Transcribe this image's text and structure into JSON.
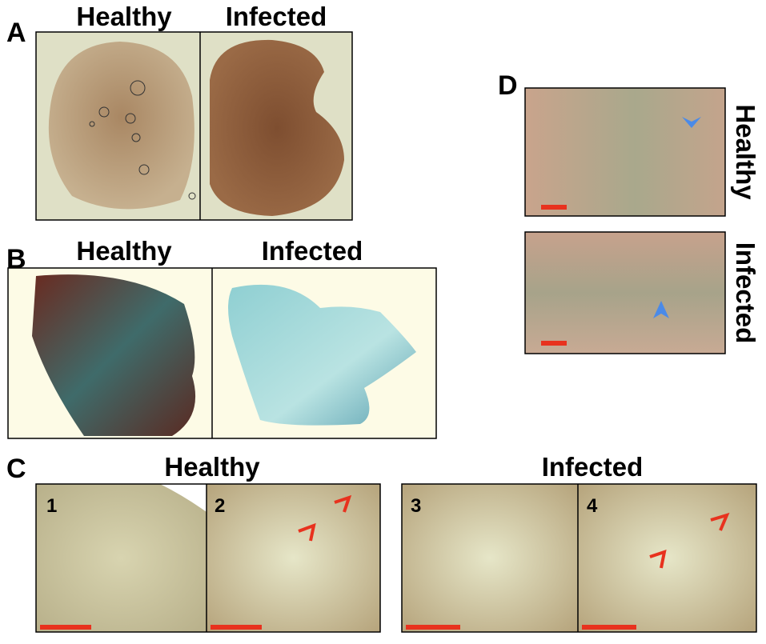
{
  "panels": [
    {
      "label": "A",
      "titles": [
        "Healthy",
        "Infected"
      ]
    },
    {
      "label": "B",
      "titles": [
        "Healthy",
        "Infected"
      ]
    },
    {
      "label": "C",
      "titles": [
        "Healthy",
        "Infected"
      ],
      "numbers": [
        "1",
        "2",
        "3",
        "4"
      ]
    },
    {
      "label": "D",
      "titles": [
        "Healthy",
        "Infected"
      ]
    }
  ]
}
